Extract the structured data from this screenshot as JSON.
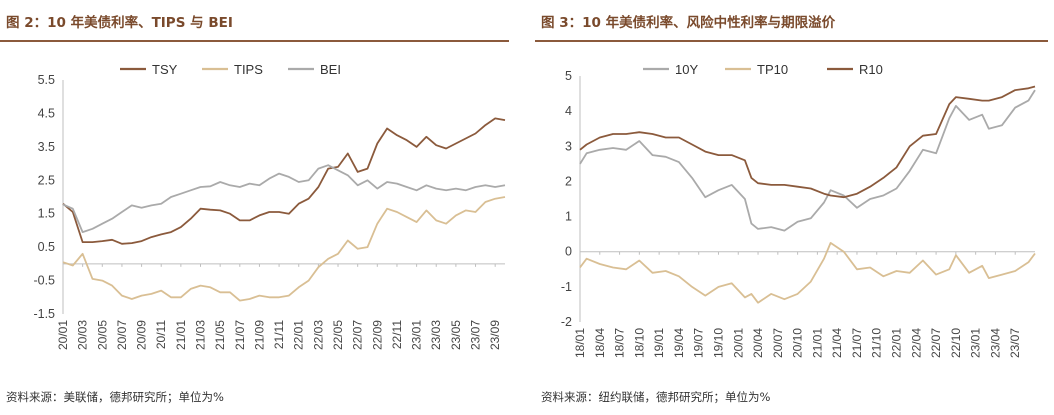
{
  "figures": [
    {
      "title": "图 2：10 年美债利率、TIPS 与 BEI",
      "source": "资料来源：美联储，德邦研究所；单位为%"
    },
    {
      "title": "图 3：10 年美债利率、风险中性利率与期限溢价",
      "source": "资料来源：纽约联储，德邦研究所；单位为%"
    }
  ],
  "colors": {
    "brown": "#8b5a3c",
    "tan": "#d9bf94",
    "gray": "#aaaaaa",
    "rule": "#8b5a3c",
    "title": "#7a4a2c"
  },
  "chart_data": [
    {
      "type": "line",
      "title": "",
      "ylim": [
        -1.5,
        5.5
      ],
      "yticks": [
        "5.5",
        "4.5",
        "3.5",
        "2.5",
        "1.5",
        "0.5",
        "-0.5",
        "-1.5"
      ],
      "x_range": [
        "2020-01",
        "2023-10"
      ],
      "xticks": [
        "20/01",
        "20/03",
        "20/05",
        "20/07",
        "20/09",
        "20/11",
        "21/01",
        "21/03",
        "21/05",
        "21/07",
        "21/09",
        "21/11",
        "22/01",
        "22/03",
        "22/05",
        "22/07",
        "22/09",
        "22/11",
        "23/01",
        "23/03",
        "23/05",
        "23/07",
        "23/09"
      ],
      "legend_position": "top-center",
      "series": [
        {
          "name": "TSY",
          "color": "#8b5a3c",
          "x": [
            "2020-01",
            "2020-02",
            "2020-03",
            "2020-04",
            "2020-05",
            "2020-06",
            "2020-07",
            "2020-08",
            "2020-09",
            "2020-10",
            "2020-11",
            "2020-12",
            "2021-01",
            "2021-02",
            "2021-03",
            "2021-04",
            "2021-05",
            "2021-06",
            "2021-07",
            "2021-08",
            "2021-09",
            "2021-10",
            "2021-11",
            "2021-12",
            "2022-01",
            "2022-02",
            "2022-03",
            "2022-04",
            "2022-05",
            "2022-06",
            "2022-07",
            "2022-08",
            "2022-09",
            "2022-10",
            "2022-11",
            "2022-12",
            "2023-01",
            "2023-02",
            "2023-03",
            "2023-04",
            "2023-05",
            "2023-06",
            "2023-07",
            "2023-08",
            "2023-09",
            "2023-10"
          ],
          "values": [
            1.8,
            1.55,
            0.65,
            0.65,
            0.68,
            0.72,
            0.6,
            0.62,
            0.68,
            0.8,
            0.88,
            0.95,
            1.1,
            1.35,
            1.65,
            1.62,
            1.6,
            1.5,
            1.3,
            1.3,
            1.45,
            1.55,
            1.55,
            1.5,
            1.8,
            1.95,
            2.3,
            2.85,
            2.9,
            3.3,
            2.75,
            2.85,
            3.6,
            4.05,
            3.85,
            3.7,
            3.5,
            3.8,
            3.55,
            3.45,
            3.6,
            3.75,
            3.9,
            4.15,
            4.35,
            4.3
          ]
        },
        {
          "name": "TIPS",
          "color": "#d9bf94",
          "x": [
            "2020-01",
            "2020-02",
            "2020-03",
            "2020-04",
            "2020-05",
            "2020-06",
            "2020-07",
            "2020-08",
            "2020-09",
            "2020-10",
            "2020-11",
            "2020-12",
            "2021-01",
            "2021-02",
            "2021-03",
            "2021-04",
            "2021-05",
            "2021-06",
            "2021-07",
            "2021-08",
            "2021-09",
            "2021-10",
            "2021-11",
            "2021-12",
            "2022-01",
            "2022-02",
            "2022-03",
            "2022-04",
            "2022-05",
            "2022-06",
            "2022-07",
            "2022-08",
            "2022-09",
            "2022-10",
            "2022-11",
            "2022-12",
            "2023-01",
            "2023-02",
            "2023-03",
            "2023-04",
            "2023-05",
            "2023-06",
            "2023-07",
            "2023-08",
            "2023-09",
            "2023-10"
          ],
          "values": [
            0.05,
            -0.05,
            0.3,
            -0.45,
            -0.5,
            -0.65,
            -0.95,
            -1.05,
            -0.95,
            -0.9,
            -0.8,
            -1.0,
            -1.0,
            -0.75,
            -0.65,
            -0.7,
            -0.85,
            -0.85,
            -1.1,
            -1.05,
            -0.95,
            -1.0,
            -1.0,
            -0.95,
            -0.7,
            -0.5,
            -0.1,
            0.15,
            0.3,
            0.7,
            0.45,
            0.5,
            1.2,
            1.65,
            1.55,
            1.4,
            1.25,
            1.6,
            1.3,
            1.2,
            1.45,
            1.6,
            1.55,
            1.85,
            1.95,
            2.0
          ]
        },
        {
          "name": "BEI",
          "color": "#aaaaaa",
          "x": [
            "2020-01",
            "2020-02",
            "2020-03",
            "2020-04",
            "2020-05",
            "2020-06",
            "2020-07",
            "2020-08",
            "2020-09",
            "2020-10",
            "2020-11",
            "2020-12",
            "2021-01",
            "2021-02",
            "2021-03",
            "2021-04",
            "2021-05",
            "2021-06",
            "2021-07",
            "2021-08",
            "2021-09",
            "2021-10",
            "2021-11",
            "2021-12",
            "2022-01",
            "2022-02",
            "2022-03",
            "2022-04",
            "2022-05",
            "2022-06",
            "2022-07",
            "2022-08",
            "2022-09",
            "2022-10",
            "2022-11",
            "2022-12",
            "2023-01",
            "2023-02",
            "2023-03",
            "2023-04",
            "2023-05",
            "2023-06",
            "2023-07",
            "2023-08",
            "2023-09",
            "2023-10"
          ],
          "values": [
            1.78,
            1.65,
            0.95,
            1.05,
            1.2,
            1.35,
            1.55,
            1.75,
            1.68,
            1.75,
            1.8,
            2.0,
            2.1,
            2.2,
            2.3,
            2.32,
            2.45,
            2.35,
            2.3,
            2.4,
            2.35,
            2.55,
            2.7,
            2.6,
            2.45,
            2.5,
            2.85,
            2.95,
            2.8,
            2.65,
            2.35,
            2.5,
            2.25,
            2.45,
            2.4,
            2.3,
            2.2,
            2.35,
            2.25,
            2.2,
            2.25,
            2.2,
            2.3,
            2.35,
            2.3,
            2.35
          ]
        }
      ]
    },
    {
      "type": "line",
      "title": "",
      "ylim": [
        -2,
        5
      ],
      "yticks": [
        "5",
        "4",
        "3",
        "2",
        "1",
        "0",
        "-1",
        "-2"
      ],
      "x_range": [
        "2018-01",
        "2023-10"
      ],
      "xticks": [
        "18/01",
        "18/04",
        "18/07",
        "18/10",
        "19/01",
        "19/04",
        "19/07",
        "19/10",
        "20/01",
        "20/04",
        "20/07",
        "20/10",
        "21/01",
        "21/04",
        "21/07",
        "21/10",
        "22/01",
        "22/04",
        "22/07",
        "22/10",
        "23/01",
        "23/04",
        "23/07"
      ],
      "legend_position": "top-center",
      "series": [
        {
          "name": "10Y",
          "color": "#aaaaaa",
          "x": [
            "2018-01",
            "2018-02",
            "2018-04",
            "2018-06",
            "2018-08",
            "2018-10",
            "2018-12",
            "2019-02",
            "2019-04",
            "2019-06",
            "2019-08",
            "2019-10",
            "2019-12",
            "2020-02",
            "2020-03",
            "2020-04",
            "2020-06",
            "2020-08",
            "2020-10",
            "2020-12",
            "2021-02",
            "2021-03",
            "2021-05",
            "2021-07",
            "2021-09",
            "2021-11",
            "2022-01",
            "2022-03",
            "2022-05",
            "2022-07",
            "2022-09",
            "2022-10",
            "2022-12",
            "2023-02",
            "2023-03",
            "2023-05",
            "2023-07",
            "2023-09",
            "2023-10"
          ],
          "values": [
            2.5,
            2.8,
            2.9,
            2.95,
            2.9,
            3.15,
            2.75,
            2.7,
            2.55,
            2.1,
            1.55,
            1.75,
            1.9,
            1.5,
            0.8,
            0.65,
            0.7,
            0.6,
            0.85,
            0.95,
            1.4,
            1.75,
            1.6,
            1.25,
            1.5,
            1.6,
            1.8,
            2.3,
            2.9,
            2.8,
            3.8,
            4.15,
            3.75,
            3.9,
            3.5,
            3.6,
            4.1,
            4.3,
            4.6
          ]
        },
        {
          "name": "TP10",
          "color": "#d9bf94",
          "x": [
            "2018-01",
            "2018-02",
            "2018-04",
            "2018-06",
            "2018-08",
            "2018-10",
            "2018-12",
            "2019-02",
            "2019-04",
            "2019-06",
            "2019-08",
            "2019-10",
            "2019-12",
            "2020-02",
            "2020-03",
            "2020-04",
            "2020-06",
            "2020-08",
            "2020-10",
            "2020-12",
            "2021-02",
            "2021-03",
            "2021-05",
            "2021-07",
            "2021-09",
            "2021-11",
            "2022-01",
            "2022-03",
            "2022-05",
            "2022-07",
            "2022-09",
            "2022-10",
            "2022-12",
            "2023-02",
            "2023-03",
            "2023-05",
            "2023-07",
            "2023-09",
            "2023-10"
          ],
          "values": [
            -0.45,
            -0.2,
            -0.35,
            -0.45,
            -0.5,
            -0.25,
            -0.6,
            -0.55,
            -0.7,
            -1.0,
            -1.25,
            -1.0,
            -0.9,
            -1.3,
            -1.2,
            -1.45,
            -1.2,
            -1.35,
            -1.2,
            -0.85,
            -0.2,
            0.25,
            0.0,
            -0.5,
            -0.45,
            -0.7,
            -0.55,
            -0.6,
            -0.25,
            -0.65,
            -0.5,
            -0.1,
            -0.6,
            -0.4,
            -0.75,
            -0.65,
            -0.55,
            -0.3,
            -0.05
          ]
        },
        {
          "name": "R10",
          "color": "#8b5a3c",
          "x": [
            "2018-01",
            "2018-02",
            "2018-04",
            "2018-06",
            "2018-08",
            "2018-10",
            "2018-12",
            "2019-02",
            "2019-04",
            "2019-06",
            "2019-08",
            "2019-10",
            "2019-12",
            "2020-02",
            "2020-03",
            "2020-04",
            "2020-06",
            "2020-08",
            "2020-10",
            "2020-12",
            "2021-02",
            "2021-03",
            "2021-05",
            "2021-07",
            "2021-09",
            "2021-11",
            "2022-01",
            "2022-03",
            "2022-05",
            "2022-07",
            "2022-09",
            "2022-10",
            "2022-12",
            "2023-02",
            "2023-03",
            "2023-05",
            "2023-07",
            "2023-09",
            "2023-10"
          ],
          "values": [
            2.9,
            3.05,
            3.25,
            3.35,
            3.35,
            3.4,
            3.35,
            3.25,
            3.25,
            3.05,
            2.85,
            2.75,
            2.75,
            2.6,
            2.1,
            1.95,
            1.9,
            1.9,
            1.85,
            1.8,
            1.65,
            1.6,
            1.55,
            1.65,
            1.85,
            2.1,
            2.4,
            3.0,
            3.3,
            3.35,
            4.2,
            4.4,
            4.35,
            4.3,
            4.3,
            4.4,
            4.6,
            4.65,
            4.7
          ]
        }
      ]
    }
  ]
}
